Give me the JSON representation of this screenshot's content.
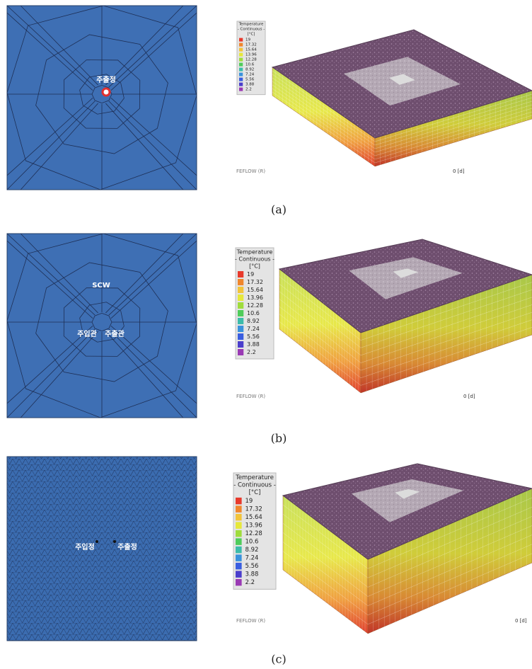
{
  "panels": [
    {
      "label": "(a)",
      "mesh_labels": [
        "주출정"
      ],
      "legend": {
        "title": "Temperature",
        "subtitle": "- Continuous -",
        "unit": "[°C]",
        "values": [
          19,
          17.32,
          15.64,
          13.96,
          12.28,
          10.6,
          8.92,
          7.24,
          5.56,
          3.88,
          2.2
        ],
        "colors": [
          "#e8392b",
          "#f0862c",
          "#f2c43a",
          "#e6e83a",
          "#9fdc3c",
          "#4fcc5a",
          "#3cbcaa",
          "#3a92dc",
          "#3a5ee0",
          "#4a3ecc",
          "#9a3ab4"
        ]
      },
      "footer": "FEFLOW (R)",
      "time": "0 [d]"
    },
    {
      "label": "(b)",
      "mesh_labels": [
        "SCW",
        "주입관",
        "주출관"
      ],
      "legend": {
        "title": "Temperature",
        "subtitle": "- Continuous -",
        "unit": "[°C]",
        "values": [
          19,
          17.32,
          15.64,
          13.96,
          12.28,
          10.6,
          8.92,
          7.24,
          5.56,
          3.88,
          2.2
        ],
        "colors": [
          "#e8392b",
          "#f0862c",
          "#f2c43a",
          "#e6e83a",
          "#9fdc3c",
          "#4fcc5a",
          "#3cbcaa",
          "#3a92dc",
          "#3a5ee0",
          "#4a3ecc",
          "#9a3ab4"
        ]
      },
      "footer": "FEFLOW (R)",
      "time": "0 [d]"
    },
    {
      "label": "(c)",
      "mesh_labels": [
        "주입정",
        "주출정"
      ],
      "legend": {
        "title": "Temperature",
        "subtitle": "- Continuous -",
        "unit": "[°C]",
        "values": [
          19,
          17.32,
          15.64,
          13.96,
          12.28,
          10.6,
          8.92,
          7.24,
          5.56,
          3.88,
          2.2
        ],
        "colors": [
          "#e8392b",
          "#f0862c",
          "#f2c43a",
          "#e6e83a",
          "#9fdc3c",
          "#4fcc5a",
          "#3cbcaa",
          "#3a92dc",
          "#3a5ee0",
          "#4a3ecc",
          "#9a3ab4"
        ]
      },
      "footer": "FEFLOW (R)",
      "time": "0 [d]"
    }
  ]
}
